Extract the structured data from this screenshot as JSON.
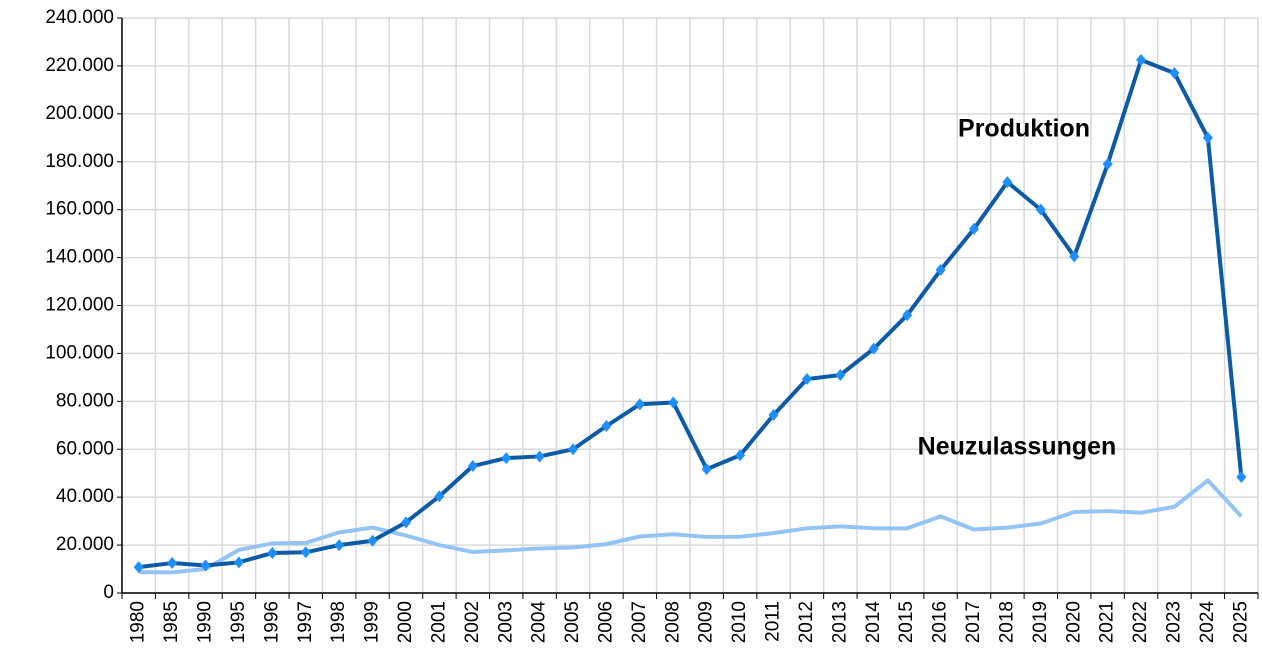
{
  "chart_data": {
    "type": "line",
    "categories": [
      "1980",
      "1985",
      "1990",
      "1995",
      "1996",
      "1997",
      "1998",
      "1999",
      "2000",
      "2001",
      "2002",
      "2003",
      "2004",
      "2005",
      "2006",
      "2007",
      "2008",
      "2009",
      "2010",
      "2011",
      "2012",
      "2013",
      "2014",
      "2015",
      "2016",
      "2017",
      "2018",
      "2019",
      "2020",
      "2021",
      "2022",
      "2023",
      "2024",
      "2025"
    ],
    "series": [
      {
        "name": "Produktion",
        "color": "#0d5aa6",
        "marker_color": "#1e8fff",
        "values": [
          10800,
          12500,
          11500,
          12800,
          16700,
          17000,
          20000,
          21800,
          29500,
          40400,
          53000,
          56300,
          57000,
          60000,
          69700,
          78800,
          79500,
          51700,
          57500,
          74300,
          89300,
          91000,
          102000,
          116000,
          134800,
          152000,
          171500,
          160000,
          140500,
          179000,
          222500,
          217000,
          190000,
          48400
        ]
      },
      {
        "name": "Neuzulassungen",
        "color": "#93c4f5",
        "values": [
          8700,
          8600,
          10000,
          18000,
          20700,
          20900,
          25300,
          27300,
          24000,
          20000,
          17100,
          17800,
          18600,
          19000,
          20400,
          23600,
          24500,
          23400,
          23500,
          25000,
          27000,
          27800,
          27000,
          27000,
          32000,
          26500,
          27300,
          29000,
          33800,
          34200,
          33500,
          36000,
          47000,
          32000
        ]
      }
    ],
    "ylim": [
      0,
      240000
    ],
    "yticks": [
      0,
      {
        "value": 20000,
        "label": "20.000"
      },
      {
        "value": 40000,
        "label": "40.000"
      },
      {
        "value": 60000,
        "label": "60.000"
      },
      {
        "value": 80000,
        "label": "80.000"
      },
      {
        "value": 100000,
        "label": "100.000"
      },
      {
        "value": 120000,
        "label": "120.000"
      },
      {
        "value": 140000,
        "label": "140.000"
      },
      {
        "value": 160000,
        "label": "160.000"
      },
      {
        "value": 180000,
        "label": "180.000"
      },
      {
        "value": 200000,
        "label": "200.000"
      },
      {
        "value": 220000,
        "label": "220.000"
      },
      {
        "value": 240000,
        "label": "240.000"
      }
    ],
    "grid": true
  }
}
